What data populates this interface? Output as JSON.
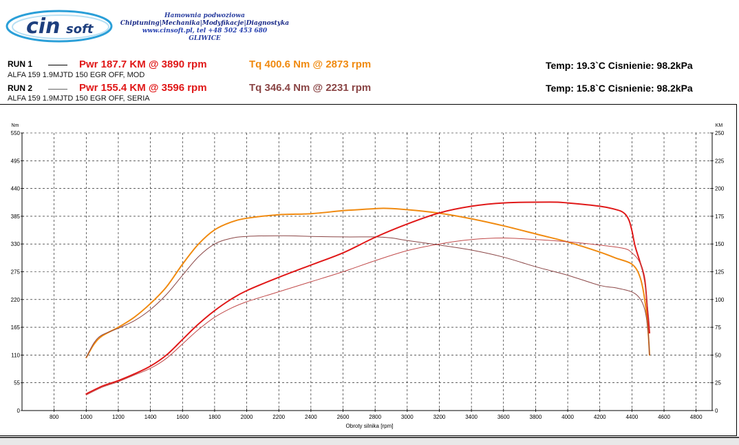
{
  "header": {
    "logo_text": "cinsoft",
    "company_lines": [
      "Hamownia podwoziowa",
      "Chiptuning|Mechanika|Modyfikacje|Diagnostyka",
      "www.cinsoft.pl, tel +48 502 453 680",
      "GLIWICE"
    ]
  },
  "runs": [
    {
      "label": "RUN 1",
      "power": "Pwr  187.7 KM @ 3890 rpm",
      "torque": "Tq 400.6 Nm @ 2873 rpm",
      "description": "ALFA 159 1.9MJTD 150 EGR OFF, MOD",
      "conditions": "Temp: 19.3`C   Cisnienie: 98.2kPa",
      "power_color": "#e01818",
      "torque_color": "#f08a10"
    },
    {
      "label": "RUN 2",
      "power": "Pwr  155.4 KM @ 3596 rpm",
      "torque": "Tq 346.4 Nm @ 2231 rpm",
      "description": "ALFA 159 1.9MJTD 150 EGR OFF, SERIA",
      "conditions": "Temp: 15.8`C   Cisnienie: 98.2kPa",
      "power_color": "#c04848",
      "torque_color": "#8a4545"
    }
  ],
  "chart_data": {
    "type": "line",
    "xlabel": "Obroty silnika [rpm]",
    "ylabel_left": "Nm",
    "ylabel_right": "KM",
    "xlim": [
      600,
      4900
    ],
    "ylim_left": [
      0,
      550
    ],
    "ylim_right": [
      0,
      250
    ],
    "x_ticks": [
      800,
      1000,
      1200,
      1400,
      1600,
      1800,
      2000,
      2200,
      2400,
      2600,
      2800,
      3000,
      3200,
      3400,
      3600,
      3800,
      4000,
      4200,
      4400,
      4600,
      4800
    ],
    "y_ticks_left": [
      0,
      55,
      110,
      165,
      220,
      275,
      330,
      385,
      440,
      495,
      550
    ],
    "y_ticks_right": [
      0,
      25,
      50,
      75,
      100,
      125,
      150,
      175,
      200,
      225,
      250
    ],
    "grid": true,
    "series": [
      {
        "name": "RUN 1 Tq",
        "axis": "left",
        "color": "#f08a10",
        "width": 2,
        "points": [
          [
            1000,
            105
          ],
          [
            1050,
            132
          ],
          [
            1100,
            148
          ],
          [
            1200,
            165
          ],
          [
            1300,
            185
          ],
          [
            1400,
            212
          ],
          [
            1500,
            245
          ],
          [
            1600,
            290
          ],
          [
            1700,
            330
          ],
          [
            1800,
            358
          ],
          [
            1900,
            373
          ],
          [
            2000,
            381
          ],
          [
            2200,
            388
          ],
          [
            2400,
            390
          ],
          [
            2600,
            396
          ],
          [
            2800,
            400
          ],
          [
            2873,
            400.6
          ],
          [
            3000,
            398
          ],
          [
            3200,
            391
          ],
          [
            3400,
            380
          ],
          [
            3600,
            366
          ],
          [
            3800,
            350
          ],
          [
            4000,
            334
          ],
          [
            4200,
            314
          ],
          [
            4300,
            302
          ],
          [
            4400,
            290
          ],
          [
            4450,
            265
          ],
          [
            4480,
            220
          ],
          [
            4500,
            160
          ],
          [
            4510,
            110
          ]
        ]
      },
      {
        "name": "RUN 2 Tq",
        "axis": "left",
        "color": "#8a4545",
        "width": 1,
        "points": [
          [
            1000,
            105
          ],
          [
            1050,
            135
          ],
          [
            1100,
            150
          ],
          [
            1200,
            163
          ],
          [
            1300,
            178
          ],
          [
            1400,
            200
          ],
          [
            1500,
            230
          ],
          [
            1600,
            268
          ],
          [
            1700,
            305
          ],
          [
            1800,
            330
          ],
          [
            1900,
            341
          ],
          [
            2000,
            345
          ],
          [
            2231,
            346.4
          ],
          [
            2400,
            345
          ],
          [
            2600,
            344
          ],
          [
            2800,
            344
          ],
          [
            2900,
            342
          ],
          [
            3000,
            337
          ],
          [
            3200,
            328
          ],
          [
            3400,
            318
          ],
          [
            3600,
            304
          ],
          [
            3800,
            285
          ],
          [
            4000,
            268
          ],
          [
            4200,
            248
          ],
          [
            4300,
            243
          ],
          [
            4400,
            235
          ],
          [
            4450,
            222
          ],
          [
            4480,
            200
          ],
          [
            4500,
            160
          ],
          [
            4510,
            110
          ]
        ]
      },
      {
        "name": "RUN 1 Pwr",
        "axis": "right",
        "color": "#e01818",
        "width": 2,
        "points": [
          [
            1000,
            15
          ],
          [
            1100,
            22
          ],
          [
            1200,
            27
          ],
          [
            1300,
            33
          ],
          [
            1400,
            40
          ],
          [
            1500,
            50
          ],
          [
            1600,
            64
          ],
          [
            1700,
            78
          ],
          [
            1800,
            90
          ],
          [
            1900,
            100
          ],
          [
            2000,
            108
          ],
          [
            2200,
            120
          ],
          [
            2400,
            131
          ],
          [
            2600,
            142
          ],
          [
            2800,
            156
          ],
          [
            3000,
            168
          ],
          [
            3200,
            178
          ],
          [
            3400,
            184
          ],
          [
            3600,
            187
          ],
          [
            3890,
            187.7
          ],
          [
            4000,
            187
          ],
          [
            4200,
            184
          ],
          [
            4300,
            181
          ],
          [
            4350,
            178
          ],
          [
            4380,
            172
          ],
          [
            4400,
            162
          ],
          [
            4420,
            148
          ],
          [
            4450,
            134
          ],
          [
            4480,
            118
          ],
          [
            4500,
            85
          ],
          [
            4510,
            70
          ]
        ]
      },
      {
        "name": "RUN 2 Pwr",
        "axis": "right",
        "color": "#c04848",
        "width": 1,
        "points": [
          [
            1000,
            14
          ],
          [
            1100,
            21
          ],
          [
            1200,
            26
          ],
          [
            1300,
            32
          ],
          [
            1400,
            38
          ],
          [
            1500,
            47
          ],
          [
            1600,
            60
          ],
          [
            1700,
            73
          ],
          [
            1800,
            84
          ],
          [
            1900,
            92
          ],
          [
            2000,
            98
          ],
          [
            2200,
            107
          ],
          [
            2400,
            116
          ],
          [
            2600,
            125
          ],
          [
            2800,
            135
          ],
          [
            3000,
            144
          ],
          [
            3200,
            150
          ],
          [
            3400,
            154
          ],
          [
            3596,
            155.4
          ],
          [
            3800,
            154
          ],
          [
            4000,
            152
          ],
          [
            4200,
            149
          ],
          [
            4350,
            146
          ],
          [
            4400,
            142
          ],
          [
            4450,
            133
          ],
          [
            4480,
            115
          ],
          [
            4500,
            90
          ],
          [
            4510,
            75
          ]
        ]
      }
    ]
  }
}
